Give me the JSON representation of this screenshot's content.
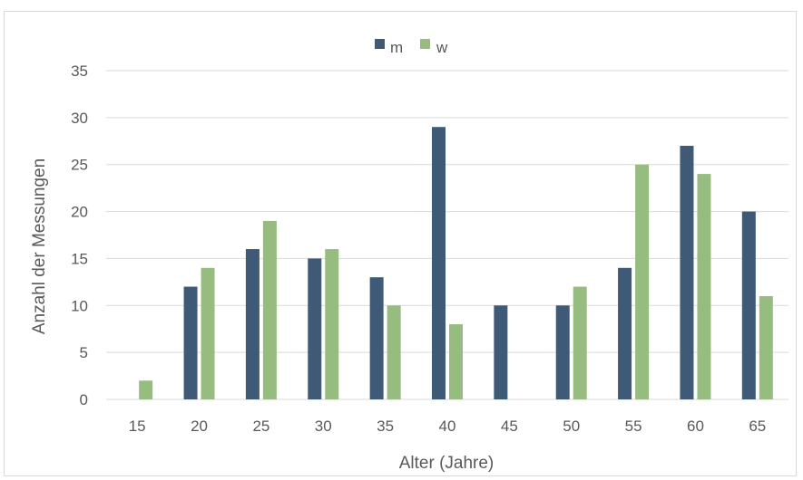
{
  "chart_data": {
    "type": "bar",
    "categories": [
      "15",
      "20",
      "25",
      "30",
      "35",
      "40",
      "45",
      "50",
      "55",
      "60",
      "65"
    ],
    "series": [
      {
        "name": "m",
        "color": "#3e5a76",
        "values": [
          0,
          12,
          16,
          15,
          13,
          29,
          10,
          10,
          14,
          27,
          20
        ]
      },
      {
        "name": "w",
        "color": "#97bc80",
        "values": [
          2,
          14,
          19,
          16,
          10,
          8,
          0,
          12,
          25,
          24,
          11
        ]
      }
    ],
    "xlabel": "Alter (Jahre)",
    "ylabel": "Anzahl der Messungen",
    "ylim": [
      0,
      35
    ],
    "yticks": [
      "0",
      "5",
      "10",
      "15",
      "20",
      "25",
      "30",
      "35"
    ],
    "grid": true,
    "legend_position": "top-center"
  }
}
